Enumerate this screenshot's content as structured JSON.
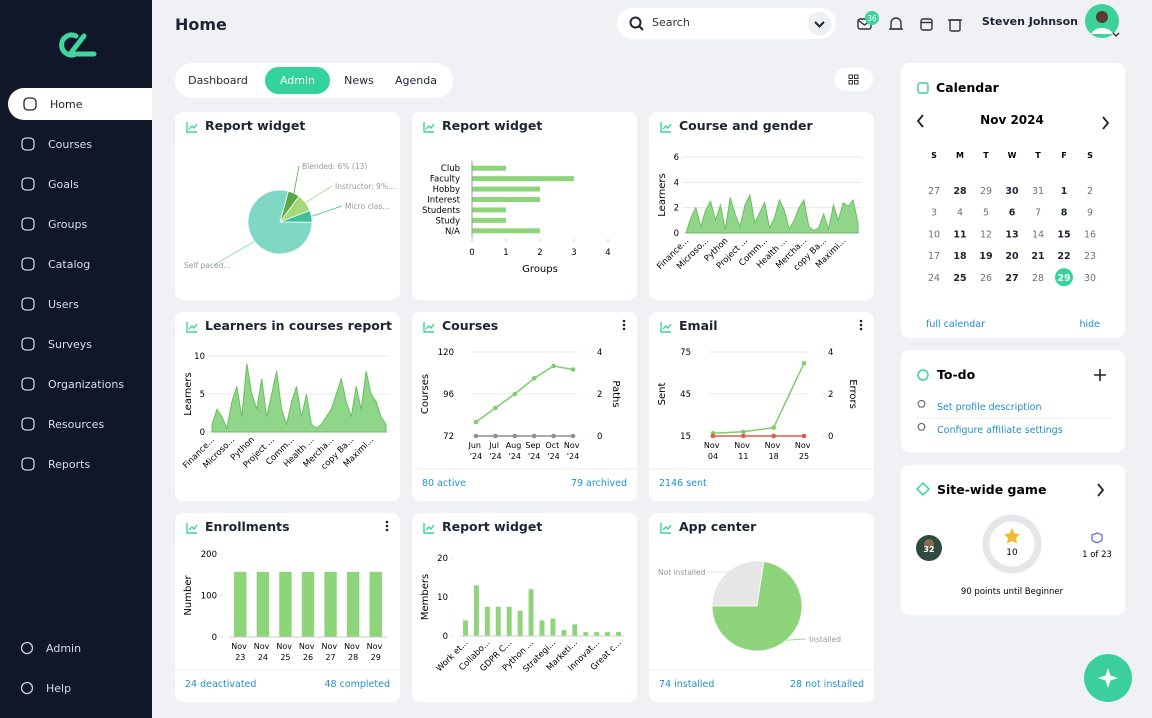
{
  "sidebar": {
    "items": [
      "Home",
      "Courses",
      "Goals",
      "Groups",
      "Catalog",
      "Users",
      "Surveys",
      "Organizations",
      "Resources",
      "Reports"
    ],
    "active": 0,
    "bottom": [
      "Admin",
      "Help"
    ]
  },
  "header": {
    "title": "Home",
    "search": "Search",
    "badge": "36",
    "user": "Steven Johnson"
  },
  "tabs": {
    "items": [
      "Dashboard",
      "Admin",
      "News",
      "Agenda"
    ],
    "active": 1
  },
  "widgets": [
    {
      "title": "Report widget",
      "chart": {
        "type": "pie",
        "labels": [
          "Blended: 6% (13)",
          "Instructor: 9%...",
          "Micro clas...",
          "Self paced..."
        ],
        "values": [
          6,
          9,
          6,
          79
        ],
        "colors": [
          "#5aa84a",
          "#a3d977",
          "#3fbf9c",
          "#7fd8c4"
        ]
      }
    },
    {
      "title": "Report widget",
      "chart": {
        "type": "hbar",
        "categories": [
          "Club",
          "Faculty",
          "Hobby",
          "Interest",
          "Students",
          "Study",
          "N/A"
        ],
        "values": [
          1,
          3,
          2,
          2,
          1,
          1,
          2
        ],
        "xlim": [
          0,
          4
        ],
        "xticks": [
          0,
          1,
          2,
          3,
          4
        ],
        "xlabel": "Groups",
        "color": "#8ed47a"
      }
    },
    {
      "title": "Course and gender",
      "chart": {
        "type": "area",
        "ylabel": "Learners",
        "ylim": [
          0,
          6
        ],
        "yticks": [
          0,
          2,
          4,
          6
        ],
        "color": "#8fd68a",
        "categories": [
          "Finance...",
          null,
          null,
          null,
          "Microso...",
          null,
          null,
          null,
          "Python",
          null,
          null,
          null,
          "Project ...",
          null,
          null,
          null,
          "Comm...",
          null,
          null,
          null,
          "Health ...",
          null,
          null,
          null,
          "Mercha...",
          null,
          null,
          null,
          "copy Ba...",
          null,
          null,
          null,
          "Maximi...",
          null,
          null,
          null
        ],
        "values": [
          0,
          1.2,
          2,
          0.5,
          1.8,
          2.5,
          1,
          2.2,
          0.3,
          2.8,
          1.5,
          0.5,
          2.2,
          3,
          0.8,
          1.6,
          2.4,
          0.4,
          1.2,
          2.6,
          1.8,
          0.3,
          1,
          2,
          2.6,
          0.5,
          0.2,
          0.4,
          1.5,
          0.3,
          2.2,
          1,
          2.4,
          2.1,
          2.6,
          0.8
        ]
      }
    },
    {
      "title": "Learners in courses report",
      "chart": {
        "type": "area",
        "ylabel": "Learners",
        "ylim": [
          0,
          10
        ],
        "yticks": [
          0,
          5,
          10
        ],
        "color": "#8fd68a",
        "categories": [
          "Finance...",
          null,
          null,
          null,
          "Microso...",
          null,
          null,
          null,
          "Python",
          null,
          null,
          null,
          "Project ...",
          null,
          null,
          null,
          "Comm...",
          null,
          null,
          null,
          "Health ...",
          null,
          null,
          null,
          "Mercha...",
          null,
          null,
          null,
          "copy Ba...",
          null,
          null,
          null,
          "Maximi...",
          null,
          null,
          null
        ],
        "values": [
          1,
          3,
          2,
          0.5,
          4,
          6,
          2,
          9,
          5,
          3,
          7,
          2,
          5,
          8,
          3,
          1,
          4,
          6,
          2,
          5,
          1,
          0.5,
          1,
          2,
          3,
          5,
          7,
          4,
          2,
          6,
          3,
          8,
          5,
          4,
          2,
          1
        ]
      }
    },
    {
      "title": "Courses",
      "footer": [
        "80 active",
        "79 archived"
      ],
      "chart": {
        "type": "dual_line",
        "ylabel": "Courses",
        "y2label": "Paths",
        "categories": [
          "Jun '24",
          "Jul '24",
          "Aug '24",
          "Sep '24",
          "Oct '24",
          "Nov '24"
        ],
        "ylim": [
          72,
          120
        ],
        "yticks": [
          72,
          96,
          120
        ],
        "y2lim": [
          0,
          4
        ],
        "y2ticks": [
          0,
          2,
          4
        ],
        "series": [
          {
            "color": "#7ccf6a",
            "values": [
              80,
              88,
              96,
              105,
              112,
              110
            ]
          },
          {
            "color": "#8a8f99",
            "axis": "y2",
            "values": [
              0,
              0,
              0,
              0,
              0,
              0
            ]
          }
        ]
      }
    },
    {
      "title": "Email",
      "footer": [
        "2146 sent"
      ],
      "chart": {
        "type": "dual_line",
        "ylabel": "Sent",
        "y2label": "Errors",
        "categories": [
          "Nov 04",
          "Nov 11",
          "Nov 18",
          "Nov 25"
        ],
        "ylim": [
          15,
          75
        ],
        "yticks": [
          15,
          45,
          75
        ],
        "y2lim": [
          0,
          4
        ],
        "y2ticks": [
          0,
          2,
          4
        ],
        "series": [
          {
            "color": "#7ccf6a",
            "values": [
              17,
              18,
              21,
              67
            ]
          },
          {
            "color": "#e05a4f",
            "axis": "y2",
            "values": [
              0,
              0,
              0,
              0
            ]
          }
        ]
      }
    },
    {
      "title": "Enrollments",
      "footer": [
        "24 deactivated",
        "48 completed"
      ],
      "chart": {
        "type": "bar",
        "ylabel": "Number",
        "categories": [
          "Nov 23",
          "Nov 24",
          "Nov 25",
          "Nov 26",
          "Nov 27",
          "Nov 28",
          "Nov 29"
        ],
        "values": [
          157,
          157,
          157,
          157,
          157,
          157,
          157
        ],
        "ylim": [
          0,
          200
        ],
        "yticks": [
          0,
          100,
          200
        ],
        "color": "#8ed47a"
      }
    },
    {
      "title": "Report widget",
      "chart": {
        "type": "bar",
        "ylabel": "Members",
        "categories": [
          "Work et...",
          null,
          "Collabo...",
          null,
          "GDPR C...",
          null,
          "Python ...",
          null,
          "Strategi...",
          null,
          "Marketi...",
          null,
          "Innovat...",
          null,
          "Great c..."
        ],
        "values": [
          4,
          13,
          7.5,
          7.5,
          7.5,
          6.5,
          12,
          4,
          4.5,
          1.5,
          3,
          1,
          1,
          1,
          1
        ],
        "ylim": [
          0,
          20
        ],
        "yticks": [
          0,
          10,
          20
        ],
        "color": "#8ed47a"
      }
    },
    {
      "title": "App center",
      "footer": [
        "74 installed",
        "28 not installed"
      ],
      "chart": {
        "type": "pie",
        "labels": [
          "Not installed",
          "Installed"
        ],
        "values": [
          28,
          74
        ],
        "colors": [
          "#e6e6e6",
          "#8ed47a"
        ]
      }
    }
  ],
  "calendar": {
    "title": "Calendar",
    "month": "Nov 2024",
    "weekdays": [
      "S",
      "M",
      "T",
      "W",
      "T",
      "F",
      "S"
    ],
    "days": [
      "27",
      "28",
      "29",
      "30",
      "31",
      "1",
      "2",
      "3",
      "4",
      "5",
      "6",
      "7",
      "8",
      "9",
      "10",
      "11",
      "12",
      "13",
      "14",
      "15",
      "16",
      "17",
      "18",
      "19",
      "20",
      "21",
      "22",
      "23",
      "24",
      "25",
      "26",
      "27",
      "28",
      "29",
      "30"
    ],
    "bold": [
      1,
      3,
      5,
      10,
      12,
      15,
      17,
      19,
      22,
      23,
      24,
      25,
      26,
      29,
      31
    ],
    "today": 33,
    "links": [
      "full calendar",
      "hide"
    ]
  },
  "todo": {
    "title": "To-do",
    "items": [
      "Set profile description",
      "Configure affiliate settings"
    ]
  },
  "game": {
    "title": "Site-wide game",
    "avatar": "32",
    "points": "10",
    "rank": "1 of 23",
    "message": "90 points until Beginner"
  }
}
